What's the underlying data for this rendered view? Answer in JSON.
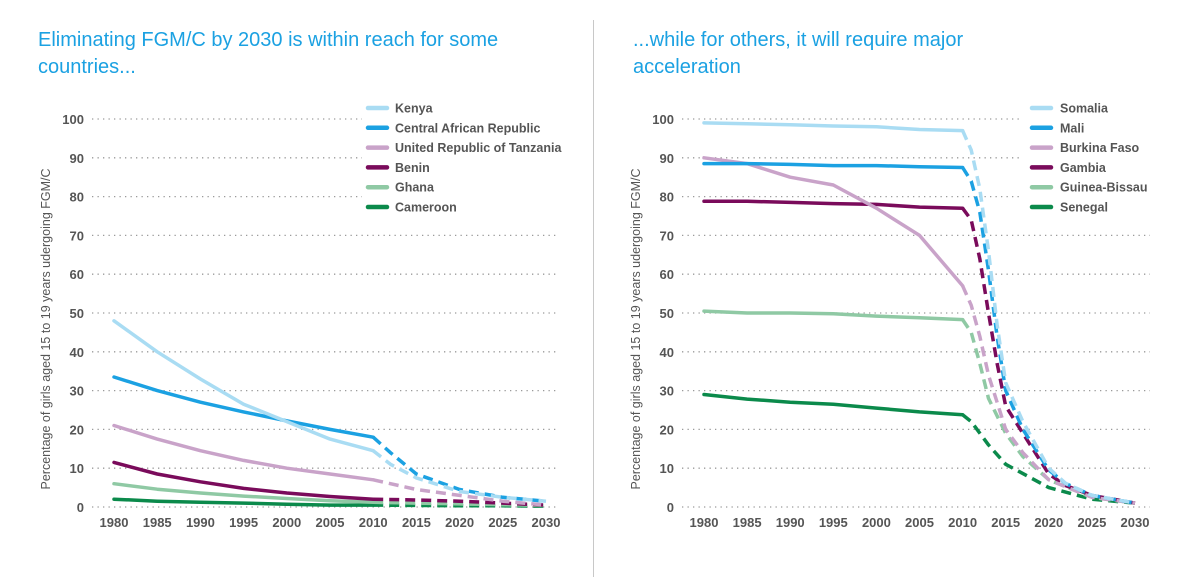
{
  "chart_data": [
    {
      "type": "line",
      "title": "Eliminating FGM/C by 2030 is within reach for some countries...",
      "ylabel": "Percentage of girls aged 15 to 19 years udergoing FGM/C",
      "xlabel": "",
      "xlim": [
        1980,
        2030
      ],
      "ylim": [
        0,
        100
      ],
      "x_ticks": [
        "1980",
        "1985",
        "1990",
        "1995",
        "2000",
        "2005",
        "2010",
        "2015",
        "2020",
        "2025",
        "2030"
      ],
      "y_ticks": [
        "0",
        "10",
        "20",
        "30",
        "40",
        "50",
        "60",
        "70",
        "80",
        "90",
        "100"
      ],
      "grid": "horizontal dotted",
      "legend": "top-right",
      "series": [
        {
          "name": "Kenya",
          "color": "#a9dcf3",
          "actual": [
            [
              1980,
              48
            ],
            [
              1985,
              40
            ],
            [
              1990,
              33
            ],
            [
              1995,
              26.5
            ],
            [
              2000,
              22
            ],
            [
              2005,
              17.5
            ],
            [
              2010,
              14.5
            ]
          ],
          "projected": [
            [
              2010,
              14.5
            ],
            [
              2012,
              11
            ],
            [
              2015,
              7.5
            ],
            [
              2020,
              4
            ],
            [
              2025,
              2.5
            ],
            [
              2030,
              1.5
            ]
          ]
        },
        {
          "name": "Central African Republic",
          "color": "#1ba1e2",
          "actual": [
            [
              1980,
              33.5
            ],
            [
              1985,
              30
            ],
            [
              1990,
              27
            ],
            [
              1995,
              24.5
            ],
            [
              2000,
              22.2
            ],
            [
              2005,
              20
            ],
            [
              2010,
              18
            ]
          ],
          "projected": [
            [
              2010,
              18
            ],
            [
              2012,
              14
            ],
            [
              2015,
              8.5
            ],
            [
              2020,
              4.5
            ],
            [
              2025,
              2.5
            ],
            [
              2030,
              1.5
            ]
          ]
        },
        {
          "name": "United Republic of Tanzania",
          "color": "#c9a3c9",
          "actual": [
            [
              1980,
              21
            ],
            [
              1985,
              17.5
            ],
            [
              1990,
              14.5
            ],
            [
              1995,
              12
            ],
            [
              2000,
              10
            ],
            [
              2005,
              8.5
            ],
            [
              2010,
              7
            ]
          ],
          "projected": [
            [
              2010,
              7
            ],
            [
              2015,
              4.5
            ],
            [
              2020,
              3
            ],
            [
              2025,
              1.5
            ],
            [
              2030,
              0.5
            ]
          ]
        },
        {
          "name": "Benin",
          "color": "#7a0b5b",
          "actual": [
            [
              1980,
              11.5
            ],
            [
              1985,
              8.5
            ],
            [
              1990,
              6.5
            ],
            [
              1995,
              4.8
            ],
            [
              2000,
              3.6
            ],
            [
              2005,
              2.7
            ],
            [
              2010,
              2
            ]
          ],
          "projected": [
            [
              2010,
              2
            ],
            [
              2015,
              1.8
            ],
            [
              2020,
              1.5
            ],
            [
              2025,
              1
            ],
            [
              2030,
              0.5
            ]
          ]
        },
        {
          "name": "Ghana",
          "color": "#8fc9a4",
          "actual": [
            [
              1980,
              6
            ],
            [
              1985,
              4.6
            ],
            [
              1990,
              3.6
            ],
            [
              1995,
              2.8
            ],
            [
              2000,
              2.2
            ],
            [
              2005,
              1.6
            ],
            [
              2010,
              1.2
            ]
          ],
          "projected": [
            [
              2010,
              1.2
            ],
            [
              2015,
              1
            ],
            [
              2020,
              0.8
            ],
            [
              2025,
              0.6
            ],
            [
              2030,
              0.4
            ]
          ]
        },
        {
          "name": "Cameroon",
          "color": "#0b8a4b",
          "actual": [
            [
              1980,
              2
            ],
            [
              1985,
              1.5
            ],
            [
              1990,
              1.2
            ],
            [
              1995,
              1
            ],
            [
              2000,
              0.7
            ],
            [
              2005,
              0.5
            ],
            [
              2010,
              0.5
            ]
          ],
          "projected": [
            [
              2010,
              0.5
            ],
            [
              2015,
              0.4
            ],
            [
              2020,
              0.3
            ],
            [
              2025,
              0.3
            ],
            [
              2030,
              0.2
            ]
          ]
        }
      ]
    },
    {
      "type": "line",
      "title": "...while for others, it will require major acceleration",
      "ylabel": "Percentage of girls aged 15 to 19 years udergoing FGM/C",
      "xlabel": "",
      "xlim": [
        1980,
        2030
      ],
      "ylim": [
        0,
        100
      ],
      "x_ticks": [
        "1980",
        "1985",
        "1990",
        "1995",
        "2000",
        "2005",
        "2010",
        "2015",
        "2020",
        "2025",
        "2030"
      ],
      "y_ticks": [
        "0",
        "10",
        "20",
        "30",
        "40",
        "50",
        "60",
        "70",
        "80",
        "90",
        "100"
      ],
      "grid": "horizontal dotted",
      "legend": "top-right",
      "series": [
        {
          "name": "Somalia",
          "color": "#a9dcf3",
          "actual": [
            [
              1980,
              99
            ],
            [
              1985,
              98.8
            ],
            [
              1990,
              98.5
            ],
            [
              1995,
              98.2
            ],
            [
              2000,
              98
            ],
            [
              2005,
              97.3
            ],
            [
              2010,
              97
            ]
          ],
          "projected": [
            [
              2010,
              97
            ],
            [
              2011,
              92
            ],
            [
              2012,
              82
            ],
            [
              2013,
              66
            ],
            [
              2014,
              47
            ],
            [
              2015,
              32
            ],
            [
              2017,
              22
            ],
            [
              2020,
              10
            ],
            [
              2022,
              6
            ],
            [
              2025,
              3
            ],
            [
              2030,
              1
            ]
          ]
        },
        {
          "name": "Mali",
          "color": "#1ba1e2",
          "actual": [
            [
              1980,
              88.5
            ],
            [
              1985,
              88.5
            ],
            [
              1990,
              88.3
            ],
            [
              1995,
              88
            ],
            [
              2000,
              88
            ],
            [
              2005,
              87.7
            ],
            [
              2010,
              87.5
            ]
          ],
          "projected": [
            [
              2010,
              87.5
            ],
            [
              2011,
              84
            ],
            [
              2012,
              76
            ],
            [
              2013,
              61
            ],
            [
              2014,
              44
            ],
            [
              2015,
              30
            ],
            [
              2017,
              20
            ],
            [
              2020,
              9.5
            ],
            [
              2022,
              6
            ],
            [
              2025,
              3
            ],
            [
              2030,
              1
            ]
          ]
        },
        {
          "name": "Burkina Faso",
          "color": "#c9a3c9",
          "actual": [
            [
              1980,
              90
            ],
            [
              1985,
              88.5
            ],
            [
              1990,
              85
            ],
            [
              1995,
              83
            ],
            [
              2000,
              77
            ],
            [
              2005,
              70
            ],
            [
              2010,
              57
            ]
          ],
          "projected": [
            [
              2010,
              57
            ],
            [
              2011,
              52
            ],
            [
              2012,
              44
            ],
            [
              2013,
              34
            ],
            [
              2015,
              20
            ],
            [
              2017,
              14
            ],
            [
              2020,
              7
            ],
            [
              2025,
              2.5
            ],
            [
              2030,
              1
            ]
          ]
        },
        {
          "name": "Gambia",
          "color": "#7a0b5b",
          "actual": [
            [
              1980,
              78.8
            ],
            [
              1985,
              78.8
            ],
            [
              1990,
              78.5
            ],
            [
              1995,
              78.2
            ],
            [
              2000,
              78
            ],
            [
              2005,
              77.3
            ],
            [
              2010,
              77
            ]
          ],
          "projected": [
            [
              2010,
              77
            ],
            [
              2011,
              74
            ],
            [
              2012,
              64
            ],
            [
              2013,
              50
            ],
            [
              2014,
              37
            ],
            [
              2015,
              26
            ],
            [
              2017,
              19
            ],
            [
              2020,
              8.5
            ],
            [
              2022,
              5.5
            ],
            [
              2025,
              3
            ],
            [
              2030,
              1
            ]
          ]
        },
        {
          "name": "Guinea-Bissau",
          "color": "#8fc9a4",
          "actual": [
            [
              1980,
              50.5
            ],
            [
              1985,
              50
            ],
            [
              1990,
              50
            ],
            [
              1995,
              49.8
            ],
            [
              2000,
              49.2
            ],
            [
              2005,
              48.8
            ],
            [
              2010,
              48.3
            ]
          ],
          "projected": [
            [
              2010,
              48.3
            ],
            [
              2011,
              45
            ],
            [
              2012,
              37
            ],
            [
              2013,
              28
            ],
            [
              2015,
              19
            ],
            [
              2017,
              13
            ],
            [
              2020,
              7
            ],
            [
              2025,
              2.5
            ],
            [
              2030,
              1
            ]
          ]
        },
        {
          "name": "Senegal",
          "color": "#0b8a4b",
          "actual": [
            [
              1980,
              29
            ],
            [
              1985,
              27.8
            ],
            [
              1990,
              27
            ],
            [
              1995,
              26.5
            ],
            [
              2000,
              25.5
            ],
            [
              2005,
              24.5
            ],
            [
              2010,
              23.8
            ]
          ],
          "projected": [
            [
              2010,
              23.8
            ],
            [
              2011,
              22
            ],
            [
              2013,
              16
            ],
            [
              2015,
              11
            ],
            [
              2020,
              5
            ],
            [
              2025,
              2
            ],
            [
              2030,
              1
            ]
          ]
        }
      ]
    }
  ]
}
